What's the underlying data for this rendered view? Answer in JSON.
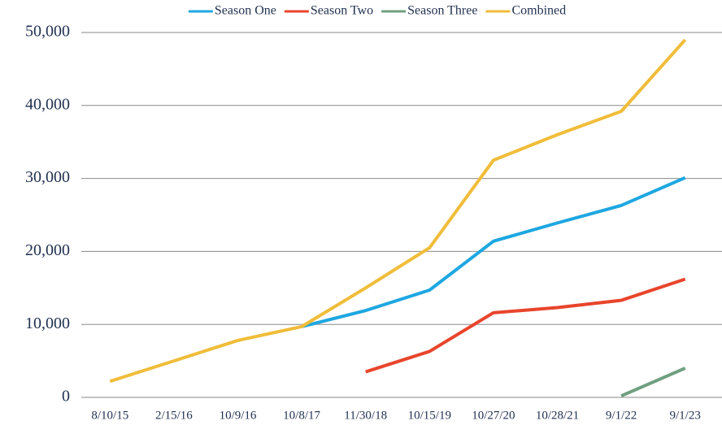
{
  "chart_data": {
    "type": "line",
    "categories": [
      "8/10/15",
      "2/15/16",
      "10/9/16",
      "10/8/17",
      "11/30/18",
      "10/15/19",
      "10/27/20",
      "10/28/21",
      "9/1/22",
      "9/1/23"
    ],
    "series": [
      {
        "name": "Season One",
        "color": "#1ea7e1",
        "values": [
          null,
          null,
          null,
          9700,
          11900,
          14700,
          21400,
          23900,
          26300,
          30100
        ]
      },
      {
        "name": "Season Two",
        "color": "#e8452c",
        "values": [
          null,
          null,
          null,
          null,
          3500,
          6300,
          11600,
          12300,
          13300,
          16200
        ]
      },
      {
        "name": "Season Three",
        "color": "#6f9f80",
        "values": [
          null,
          null,
          null,
          null,
          null,
          null,
          null,
          null,
          200,
          4000
        ]
      },
      {
        "name": "Combined",
        "color": "#f0bd3a",
        "values": [
          2200,
          5000,
          7800,
          9700,
          15000,
          20500,
          32500,
          36000,
          39200,
          49000
        ]
      }
    ],
    "ylim": [
      0,
      50000
    ],
    "yticks": [
      0,
      {
        "value": 10000,
        "label": "10,000"
      },
      {
        "value": 20000,
        "label": "20,000"
      },
      {
        "value": 30000,
        "label": "30,000"
      },
      {
        "value": 40000,
        "label": "40,000"
      },
      {
        "value": 50000,
        "label": "50,000"
      }
    ],
    "grid": true,
    "legend": "top"
  }
}
